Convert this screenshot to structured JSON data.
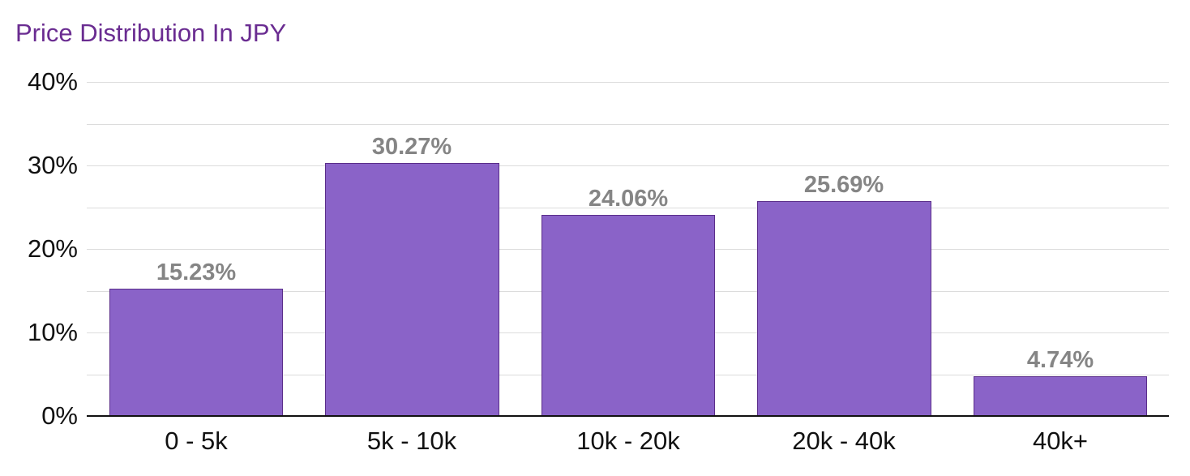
{
  "chart_data": {
    "type": "bar",
    "title": "Price Distribution In JPY",
    "categories": [
      "0 - 5k",
      "5k - 10k",
      "10k - 20k",
      "20k - 40k",
      "40k+"
    ],
    "values": [
      15.23,
      30.27,
      24.06,
      25.69,
      4.74
    ],
    "value_labels": [
      "15.23%",
      "30.27%",
      "24.06%",
      "25.69%",
      "4.74%"
    ],
    "xlabel": "",
    "ylabel": "",
    "ylim": [
      0,
      40
    ],
    "yticks": [
      "0%",
      "10%",
      "20%",
      "30%",
      "40%"
    ],
    "grid": true,
    "legend": null,
    "colors": {
      "bar": "#8a63c8",
      "bar_border": "#5a2d8a",
      "title": "#6a2c91",
      "value_label": "#858585"
    }
  }
}
